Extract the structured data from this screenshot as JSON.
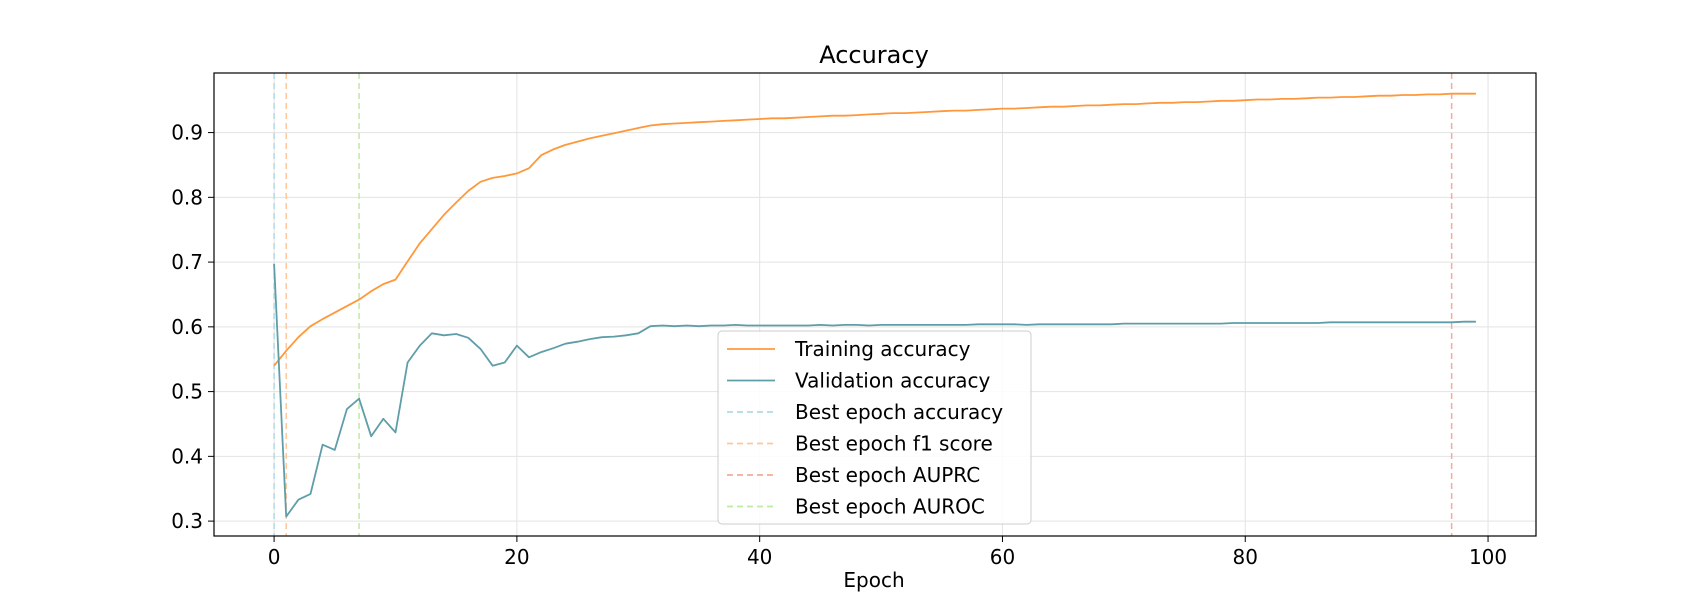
{
  "chart_data": {
    "type": "line",
    "title": "Accuracy",
    "xlabel": "Epoch",
    "ylabel": "",
    "xlim": [
      -4.95,
      103.95
    ],
    "ylim": [
      0.277,
      0.992
    ],
    "xticks": [
      0,
      20,
      40,
      60,
      80,
      100
    ],
    "yticks": [
      0.3,
      0.4,
      0.5,
      0.6,
      0.7,
      0.8,
      0.9
    ],
    "grid": true,
    "legend_position": "lower-center",
    "series": [
      {
        "name": "Training accuracy",
        "color": "#ff983b",
        "x": [
          0,
          1,
          2,
          3,
          4,
          5,
          6,
          7,
          8,
          9,
          10,
          11,
          12,
          13,
          14,
          15,
          16,
          17,
          18,
          19,
          20,
          21,
          22,
          23,
          24,
          25,
          26,
          27,
          28,
          29,
          30,
          31,
          32,
          33,
          34,
          35,
          36,
          37,
          38,
          39,
          40,
          41,
          42,
          43,
          44,
          45,
          46,
          47,
          48,
          49,
          50,
          51,
          52,
          53,
          54,
          55,
          56,
          57,
          58,
          59,
          60,
          61,
          62,
          63,
          64,
          65,
          66,
          67,
          68,
          69,
          70,
          71,
          72,
          73,
          74,
          75,
          76,
          77,
          78,
          79,
          80,
          81,
          82,
          83,
          84,
          85,
          86,
          87,
          88,
          89,
          90,
          91,
          92,
          93,
          94,
          95,
          96,
          97,
          98,
          99
        ],
        "values": [
          0.54,
          0.563,
          0.584,
          0.601,
          0.612,
          0.622,
          0.632,
          0.642,
          0.655,
          0.666,
          0.673,
          0.701,
          0.729,
          0.751,
          0.773,
          0.792,
          0.81,
          0.824,
          0.83,
          0.833,
          0.837,
          0.845,
          0.865,
          0.874,
          0.881,
          0.886,
          0.891,
          0.895,
          0.899,
          0.903,
          0.907,
          0.911,
          0.913,
          0.914,
          0.915,
          0.916,
          0.917,
          0.918,
          0.919,
          0.92,
          0.921,
          0.922,
          0.922,
          0.923,
          0.924,
          0.925,
          0.926,
          0.926,
          0.927,
          0.928,
          0.929,
          0.93,
          0.93,
          0.931,
          0.932,
          0.933,
          0.934,
          0.934,
          0.935,
          0.936,
          0.937,
          0.937,
          0.938,
          0.939,
          0.94,
          0.94,
          0.941,
          0.942,
          0.942,
          0.943,
          0.944,
          0.944,
          0.945,
          0.946,
          0.946,
          0.947,
          0.947,
          0.948,
          0.949,
          0.949,
          0.95,
          0.951,
          0.951,
          0.952,
          0.952,
          0.953,
          0.954,
          0.954,
          0.955,
          0.955,
          0.956,
          0.957,
          0.957,
          0.958,
          0.958,
          0.959,
          0.959,
          0.96,
          0.96,
          0.96
        ]
      },
      {
        "name": "Validation accuracy",
        "color": "#5f9ea8",
        "x": [
          0,
          1,
          2,
          3,
          4,
          5,
          6,
          7,
          8,
          9,
          10,
          11,
          12,
          13,
          14,
          15,
          16,
          17,
          18,
          19,
          20,
          21,
          22,
          23,
          24,
          25,
          26,
          27,
          28,
          29,
          30,
          31,
          32,
          33,
          34,
          35,
          36,
          37,
          38,
          39,
          40,
          41,
          42,
          43,
          44,
          45,
          46,
          47,
          48,
          49,
          50,
          51,
          52,
          53,
          54,
          55,
          56,
          57,
          58,
          59,
          60,
          61,
          62,
          63,
          64,
          65,
          66,
          67,
          68,
          69,
          70,
          71,
          72,
          73,
          74,
          75,
          76,
          77,
          78,
          79,
          80,
          81,
          82,
          83,
          84,
          85,
          86,
          87,
          88,
          89,
          90,
          91,
          92,
          93,
          94,
          95,
          96,
          97,
          98,
          99
        ],
        "values": [
          0.697,
          0.307,
          0.333,
          0.342,
          0.418,
          0.41,
          0.473,
          0.489,
          0.431,
          0.458,
          0.437,
          0.545,
          0.571,
          0.59,
          0.587,
          0.589,
          0.583,
          0.566,
          0.54,
          0.545,
          0.571,
          0.553,
          0.561,
          0.567,
          0.574,
          0.577,
          0.581,
          0.584,
          0.585,
          0.587,
          0.59,
          0.601,
          0.602,
          0.601,
          0.602,
          0.601,
          0.602,
          0.602,
          0.603,
          0.602,
          0.602,
          0.602,
          0.602,
          0.602,
          0.602,
          0.603,
          0.602,
          0.603,
          0.603,
          0.602,
          0.603,
          0.603,
          0.603,
          0.603,
          0.603,
          0.603,
          0.603,
          0.603,
          0.604,
          0.604,
          0.604,
          0.604,
          0.603,
          0.604,
          0.604,
          0.604,
          0.604,
          0.604,
          0.604,
          0.604,
          0.605,
          0.605,
          0.605,
          0.605,
          0.605,
          0.605,
          0.605,
          0.605,
          0.605,
          0.606,
          0.606,
          0.606,
          0.606,
          0.606,
          0.606,
          0.606,
          0.606,
          0.607,
          0.607,
          0.607,
          0.607,
          0.607,
          0.607,
          0.607,
          0.607,
          0.607,
          0.607,
          0.607,
          0.608,
          0.608
        ]
      }
    ],
    "vlines": [
      {
        "name": "Best epoch accuracy",
        "x": 0,
        "color": "#b3d9e3"
      },
      {
        "name": "Best epoch f1 score",
        "x": 1,
        "color": "#ffc89a"
      },
      {
        "name": "Best epoch AUPRC",
        "x": 97,
        "color": "#f4ab97"
      },
      {
        "name": "Best epoch AUROC",
        "x": 7,
        "color": "#bfeaa6"
      }
    ]
  }
}
